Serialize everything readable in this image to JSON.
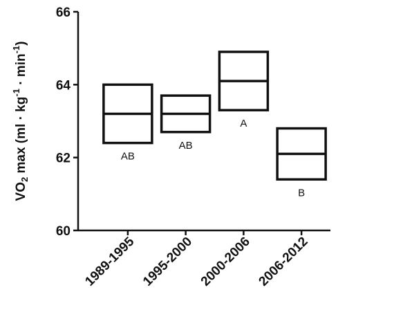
{
  "chart_data": {
    "type": "box",
    "title": "",
    "xlabel": "",
    "ylabel_parts": {
      "prefix": "VO",
      "sub": "2",
      "mid": " max (ml · kg",
      "sup1": "-1",
      "mid2": " · min",
      "sup2": "-1",
      "suffix": ")"
    },
    "ylim": [
      60,
      66
    ],
    "yticks": [
      60,
      62,
      64,
      66
    ],
    "categories": [
      "1989-1995",
      "1995-2000",
      "2000-2006",
      "2006-2012"
    ],
    "boxes": [
      {
        "category": "1989-1995",
        "low": 62.4,
        "mid": 63.2,
        "high": 64.0,
        "letter": "AB"
      },
      {
        "category": "1995-2000",
        "low": 62.7,
        "mid": 63.2,
        "high": 63.7,
        "letter": "AB"
      },
      {
        "category": "2000-2006",
        "low": 63.3,
        "mid": 64.1,
        "high": 64.9,
        "letter": "A"
      },
      {
        "category": "2006-2012",
        "low": 61.4,
        "mid": 62.1,
        "high": 62.8,
        "letter": "B"
      }
    ],
    "grid": false,
    "legend": "none"
  }
}
